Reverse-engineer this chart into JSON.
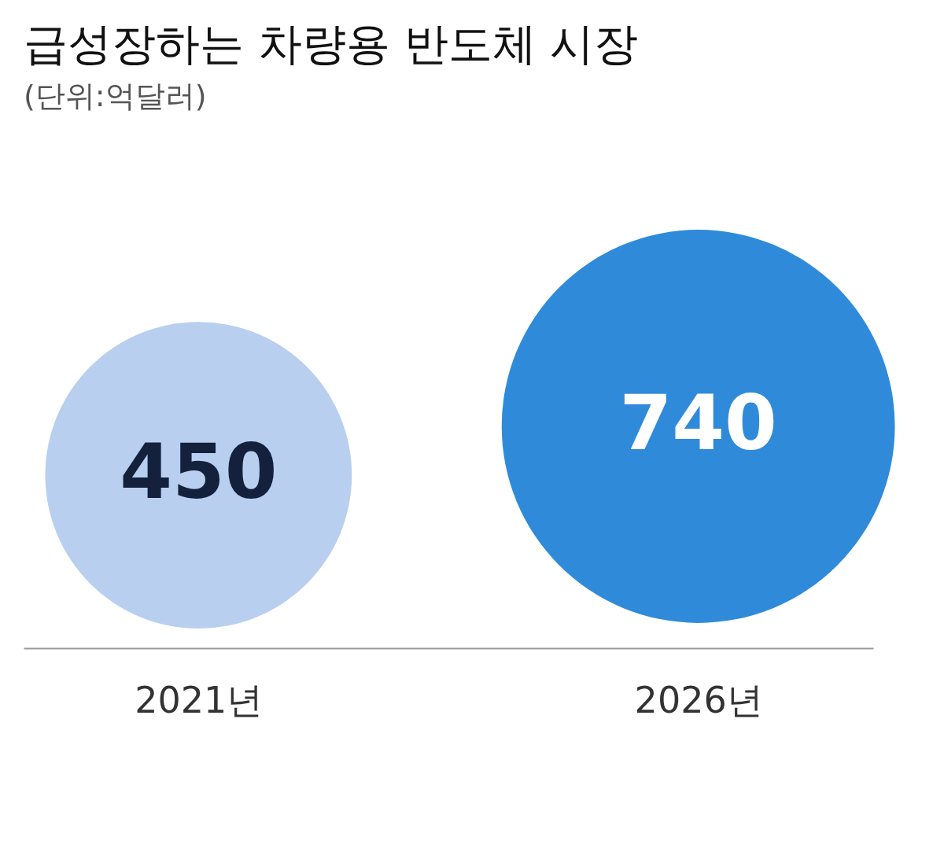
{
  "chart_data": {
    "type": "other",
    "title": "급성장하는 차량용 반도체 시장",
    "subtitle": "(단위:억달러)",
    "categories": [
      "2021년",
      "2026년"
    ],
    "values": [
      450,
      740
    ],
    "colors": [
      "#b9cff0",
      "#2f8bd9"
    ],
    "data_labels": true
  }
}
